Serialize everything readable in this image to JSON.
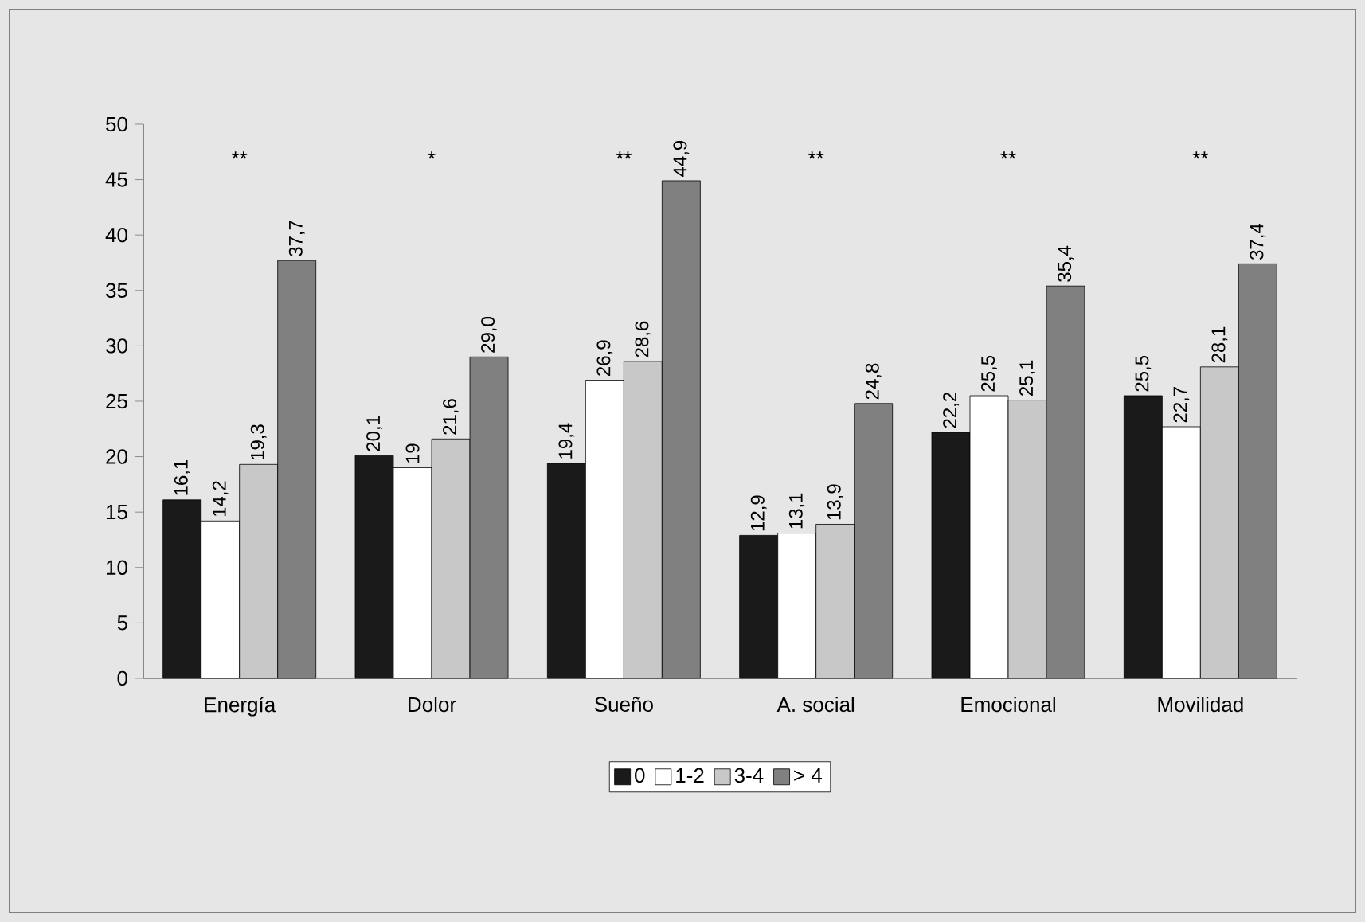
{
  "chart_data": {
    "type": "bar",
    "categories": [
      "Energía",
      "Dolor",
      "Sueño",
      "A. social",
      "Emocional",
      "Movilidad"
    ],
    "series": [
      {
        "name": "0",
        "color": "#1a1a1a",
        "values": [
          16.1,
          20.1,
          19.4,
          12.9,
          22.2,
          25.5
        ],
        "value_labels": [
          "16,1",
          "20,1",
          "19,4",
          "12,9",
          "22,2",
          "25,5"
        ]
      },
      {
        "name": "1-2",
        "color": "#ffffff",
        "values": [
          14.2,
          19,
          26.9,
          13.1,
          25.5,
          22.7
        ],
        "value_labels": [
          "14,2",
          "19",
          "26,9",
          "13,1",
          "25,5",
          "22,7"
        ]
      },
      {
        "name": "3-4",
        "color": "#c8c8c8",
        "values": [
          19.3,
          21.6,
          28.6,
          13.9,
          25.1,
          28.1
        ],
        "value_labels": [
          "19,3",
          "21,6",
          "28,6",
          "13,9",
          "25,1",
          "28,1"
        ]
      },
      {
        "name": "> 4",
        "color": "#808080",
        "values": [
          37.7,
          29.0,
          44.9,
          24.8,
          35.4,
          37.4
        ],
        "value_labels": [
          "37,7",
          "29,0",
          "44,9",
          "24,8",
          "35,4",
          "37,4"
        ]
      }
    ],
    "ylim": [
      0,
      50
    ],
    "yticks": [
      0,
      5,
      10,
      15,
      20,
      25,
      30,
      35,
      40,
      45,
      50
    ],
    "grid": false,
    "legend": "bottom",
    "annotations": [
      "**",
      "*",
      "**",
      "**",
      "**",
      "**"
    ]
  }
}
